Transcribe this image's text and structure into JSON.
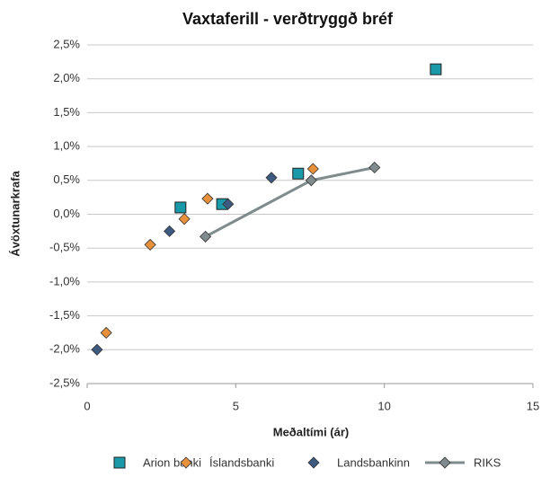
{
  "chart_data": {
    "type": "scatter",
    "title": "Vaxtaferill - verðtryggð bréf",
    "x_label": "Meðaltími (ár)",
    "y_label": "Ávöxtunarkrafa",
    "xlim": [
      0,
      15
    ],
    "xticks": [
      0,
      5,
      10,
      15
    ],
    "ylim": [
      -2.5,
      2.5
    ],
    "yticks": [
      {
        "value": -2.5,
        "label": "-2,5%"
      },
      {
        "value": -2.0,
        "label": "-2,0%"
      },
      {
        "value": -1.5,
        "label": "-1,5%"
      },
      {
        "value": -1.0,
        "label": "-1,0%"
      },
      {
        "value": -0.5,
        "label": "-0,5%"
      },
      {
        "value": 0,
        "label": "0,0%"
      },
      {
        "value": 0.5,
        "label": "0,5%"
      },
      {
        "value": 1.0,
        "label": "1,0%"
      },
      {
        "value": 1.5,
        "label": "1,5%"
      },
      {
        "value": 2.0,
        "label": "2,0%"
      },
      {
        "value": 2.5,
        "label": "2,5%"
      }
    ],
    "grid": true,
    "legend": "bottom",
    "series": [
      {
        "name": "Arion banki",
        "color": "#1a9aa8",
        "marker": "square",
        "x": [
          3.14,
          4.54,
          7.1,
          11.73
        ],
        "values": [
          0.1,
          0.15,
          0.6,
          2.14
        ]
      },
      {
        "name": "Íslandsbanki",
        "color": "#e8913a",
        "marker": "diamond",
        "x": [
          0.64,
          2.12,
          3.27,
          4.05,
          7.6
        ],
        "values": [
          -1.75,
          -0.45,
          -0.07,
          0.23,
          0.67
        ]
      },
      {
        "name": "Landsbankinn",
        "color": "#3d5a80",
        "marker": "diamond",
        "x": [
          0.33,
          2.77,
          4.74,
          6.2
        ],
        "values": [
          -2.0,
          -0.25,
          0.15,
          0.54
        ]
      },
      {
        "name": "RIKS",
        "color": "#7f8b8c",
        "marker": "diamond",
        "line": true,
        "x": [
          3.98,
          7.54,
          9.67
        ],
        "values": [
          -0.33,
          0.5,
          0.69
        ]
      }
    ]
  }
}
